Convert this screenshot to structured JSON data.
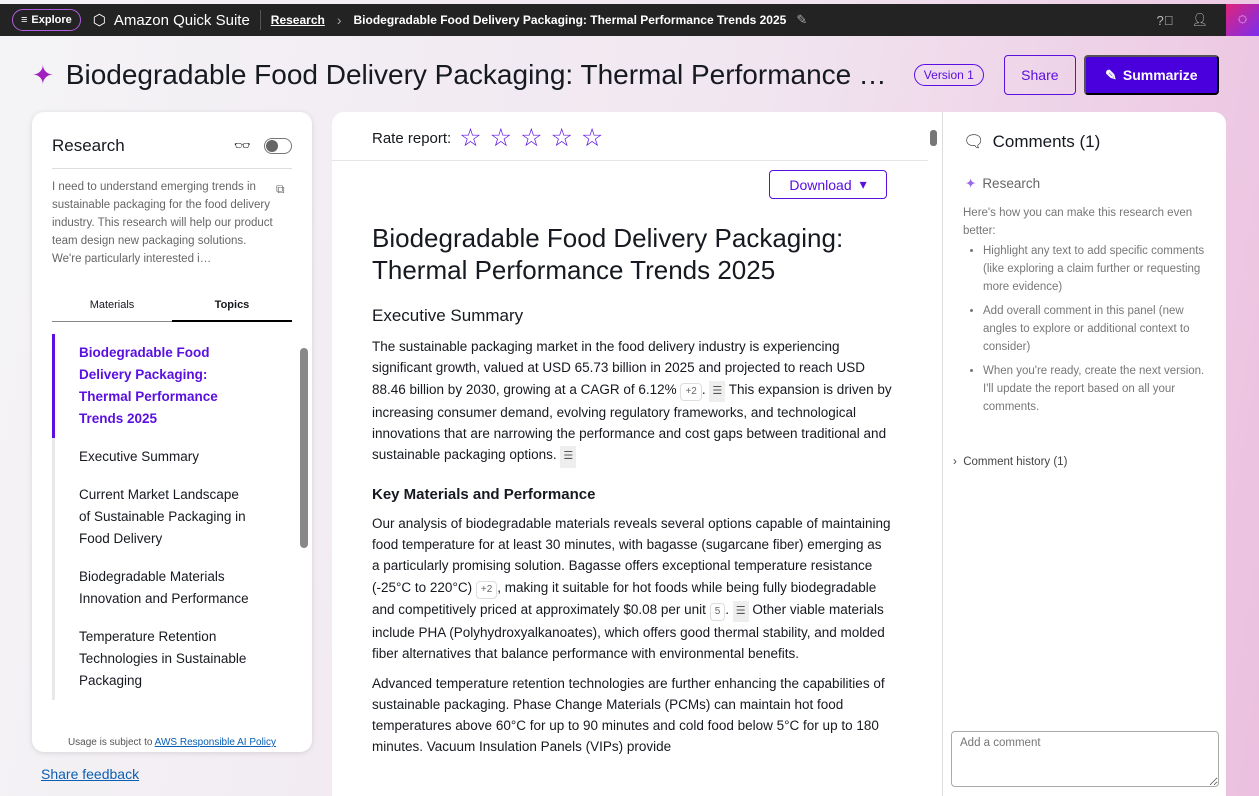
{
  "topbar": {
    "explore": "Explore",
    "brand": "Amazon Quick Suite",
    "breadcrumb_root": "Research",
    "breadcrumb_current": "Biodegradable Food Delivery Packaging: Thermal Performance Trends 2025"
  },
  "header": {
    "title": "Biodegradable Food Delivery Packaging: Thermal Performance Trends 2025",
    "version": "Version 1",
    "share": "Share",
    "summarize": "Summarize"
  },
  "left": {
    "title": "Research",
    "prompt": "I need to understand emerging trends in sustainable packaging for the food delivery industry. This research will help our product team design new packaging solutions. We're particularly interested i…",
    "tabs": [
      "Materials",
      "Topics"
    ],
    "active_tab": "Topics",
    "toc": [
      "Biodegradable Food Delivery Packaging: Thermal Performance Trends 2025",
      "Executive Summary",
      "Current Market Landscape of Sustainable Packaging in Food Delivery",
      "Biodegradable Materials Innovation and Performance",
      "Temperature Retention Technologies in Sustainable Packaging"
    ],
    "usage_prefix": "Usage is subject to ",
    "usage_link": "AWS Responsible AI Policy",
    "feedback": "Share feedback"
  },
  "main": {
    "rate_label": "Rate report:",
    "rating": 0,
    "download": "Download",
    "doc_title": "Biodegradable Food Delivery Packaging: Thermal Performance Trends 2025",
    "h_exec": "Executive Summary",
    "p1a": "The sustainable packaging market in the food delivery industry is experiencing significant growth, valued at USD 65.73 billion in 2025 and projected to reach USD 88.46 billion by 2030, growing at a CAGR of 6.12%",
    "c1": "+2",
    "p1b": " This expansion is driven by increasing consumer demand, evolving regulatory frameworks, and technological innovations that are narrowing the performance and cost gaps between traditional and sustainable packaging options.",
    "h_key": "Key Materials and Performance",
    "p2a": "Our analysis of biodegradable materials reveals several options capable of maintaining food temperature for at least 30 minutes, with bagasse (sugarcane fiber) emerging as a particularly promising solution. Bagasse offers exceptional temperature resistance (-25°C to 220°C)",
    "c2": "+2",
    "p2b": ", making it suitable for hot foods while being fully biodegradable and competitively priced at approximately $0.08 per unit",
    "c3": "5",
    "p2c": " Other viable materials include PHA (Polyhydroxyalkanoates), which offers good thermal stability, and molded fiber alternatives that balance performance with environmental benefits.",
    "p3": "Advanced temperature retention technologies are further enhancing the capabilities of sustainable packaging. Phase Change Materials (PCMs) can maintain hot food temperatures above 60°C for up to 90 minutes and cold food below 5°C for up to 180 minutes. Vacuum Insulation Panels (VIPs) provide"
  },
  "comments": {
    "title": "Comments (1)",
    "author": "Research",
    "intro": "Here's how you can make this research even better:",
    "tips": [
      "Highlight any text to add specific comments (like exploring a claim further or requesting more evidence)",
      "Add overall comment in this panel (new angles to explore or additional context to consider)",
      "When you're ready, create the next version. I'll update the report based on all your comments."
    ],
    "history": "Comment history (1)",
    "input_placeholder": "Add a comment"
  },
  "colors": {
    "accent": "#4a00dc",
    "link": "#0a5fb4",
    "topbar": "#232323"
  }
}
